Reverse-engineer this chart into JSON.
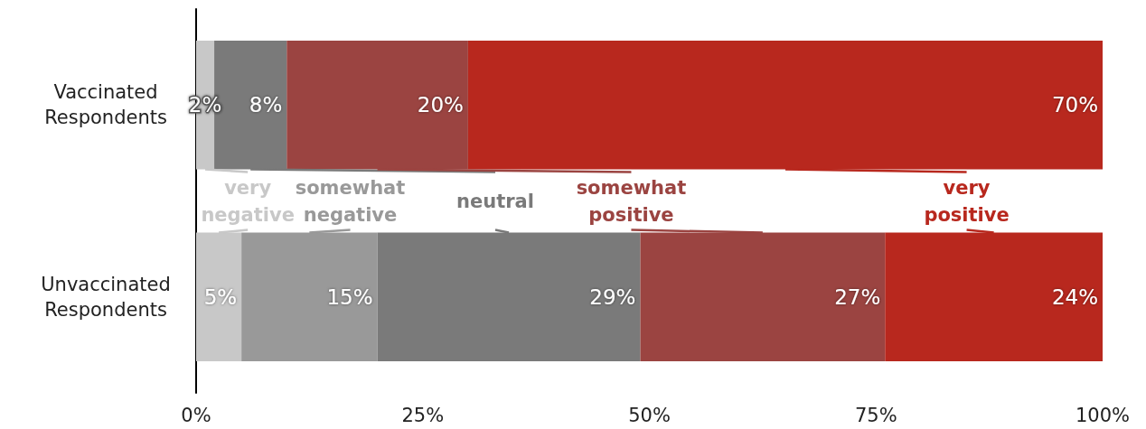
{
  "chart_data": {
    "type": "bar",
    "orientation": "horizontal",
    "stacked": true,
    "categories": [
      "Vaccinated\nRespondents",
      "Unvaccinated\nRespondents"
    ],
    "series": [
      {
        "name": "very negative",
        "color": "#c8c8c8",
        "values": [
          2,
          5
        ],
        "value_labels": [
          "2%",
          "5%"
        ]
      },
      {
        "name": "somewhat negative",
        "color": "#999999",
        "values": [
          0,
          15
        ],
        "value_labels": [
          null,
          "15%"
        ]
      },
      {
        "name": "neutral",
        "color": "#7a7a7a",
        "values": [
          8,
          29
        ],
        "value_labels": [
          "8%",
          "29%"
        ]
      },
      {
        "name": "somewhat positive",
        "color": "#9b4441",
        "values": [
          20,
          27
        ],
        "value_labels": [
          "20%",
          "27%"
        ]
      },
      {
        "name": "very positive",
        "color": "#b8281e",
        "values": [
          70,
          24
        ],
        "value_labels": [
          "70%",
          "24%"
        ]
      }
    ],
    "xlim": [
      0,
      100
    ],
    "xticks": [
      {
        "value": 0,
        "label": "0%"
      },
      {
        "value": 25,
        "label": "25%"
      },
      {
        "value": 50,
        "label": "50%"
      },
      {
        "value": 75,
        "label": "75%"
      },
      {
        "value": 100,
        "label": "100%"
      }
    ],
    "grid": false,
    "legend": "center"
  }
}
